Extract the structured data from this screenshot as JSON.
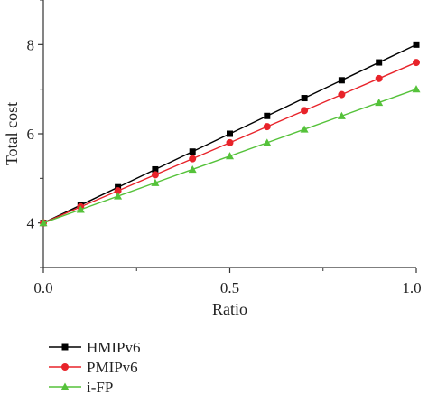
{
  "chart_data": {
    "type": "line",
    "title": "",
    "xlabel": "Ratio",
    "ylabel": "Total cost",
    "xlim": [
      0,
      1
    ],
    "ylim": [
      3,
      9
    ],
    "xticks": [
      0.0,
      0.5,
      1.0
    ],
    "xtick_labels": [
      "0.0",
      "0.5",
      "1.0"
    ],
    "yticks": [
      4,
      6,
      8
    ],
    "ytick_labels": [
      "4",
      "6",
      "8"
    ],
    "grid": false,
    "legend_position": "bottom-left",
    "x": [
      0.0,
      0.1,
      0.2,
      0.3,
      0.4,
      0.5,
      0.6,
      0.7,
      0.8,
      0.9,
      1.0
    ],
    "series": [
      {
        "name": "HMIPv6",
        "color": "#000000",
        "marker": "square",
        "values": [
          4.0,
          4.4,
          4.8,
          5.2,
          5.6,
          6.0,
          6.4,
          6.8,
          7.2,
          7.6,
          8.0
        ]
      },
      {
        "name": "PMIPv6",
        "color": "#e8232a",
        "marker": "circle",
        "values": [
          4.0,
          4.36,
          4.72,
          5.08,
          5.44,
          5.8,
          6.16,
          6.52,
          6.88,
          7.24,
          7.6
        ]
      },
      {
        "name": "i-FP",
        "color": "#55c23a",
        "marker": "triangle",
        "values": [
          4.0,
          4.3,
          4.6,
          4.9,
          5.2,
          5.5,
          5.8,
          6.1,
          6.4,
          6.7,
          7.0
        ]
      }
    ]
  }
}
